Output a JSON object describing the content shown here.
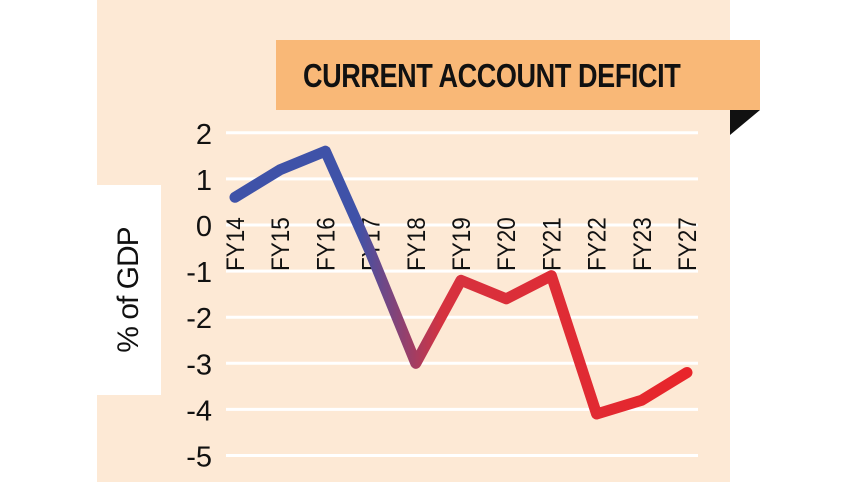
{
  "chart_data": {
    "type": "line",
    "title": "CURRENT ACCOUNT DEFICIT",
    "xlabel": "",
    "ylabel": "% of GDP",
    "categories": [
      "FY14",
      "FY15",
      "FY16",
      "FY17",
      "FY18",
      "FY19",
      "FY20",
      "FY21",
      "FY22",
      "FY23",
      "FY27"
    ],
    "values": [
      0.6,
      1.2,
      1.6,
      -0.6,
      -3.0,
      -1.2,
      -1.6,
      -1.1,
      -4.1,
      -3.8,
      -3.2
    ],
    "yticks": [
      2,
      1,
      0,
      -1,
      -2,
      -3,
      -4,
      -5
    ],
    "ylim": [
      -5,
      2
    ],
    "grid": true,
    "legend": null,
    "line_gradient": {
      "start_color": "#3F52A8",
      "end_color": "#E8252A"
    }
  },
  "header": {
    "title": "CURRENT ACCOUNT DEFICIT"
  },
  "axis": {
    "ylabel": "% of GDP"
  },
  "colors": {
    "background": "#FDE9D5",
    "banner": "#F9B877",
    "gridline": "#FFFFFF",
    "line_start": "#3F52A8",
    "line_end": "#E8252A"
  }
}
